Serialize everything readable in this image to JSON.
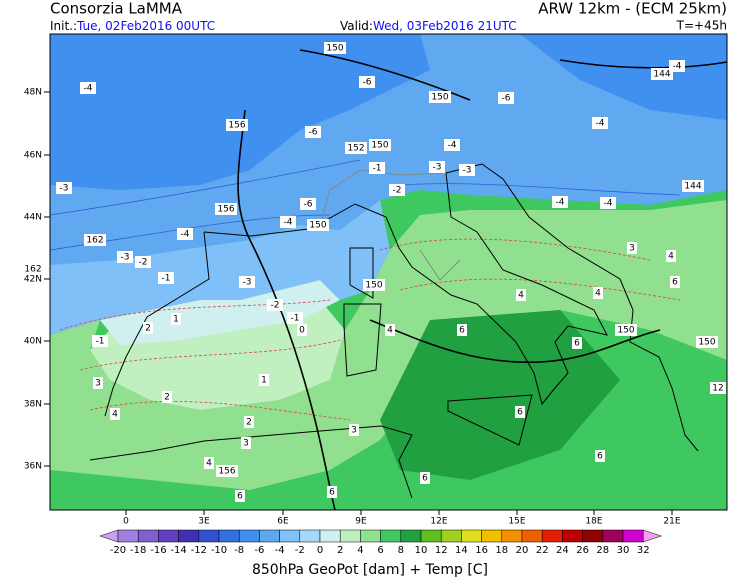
{
  "header": {
    "title": "Consorzia LaMMA",
    "model": "ARW 12km - (ECM 25km)",
    "init_label": "Init.:",
    "init_time": "Tue, 02Feb2016 00UTC",
    "valid_label": "Valid:",
    "valid_time": "Wed, 03Feb2016 21UTC",
    "lead": "T=+45h"
  },
  "map": {
    "lat_labels": [
      "48N",
      "46N",
      "44N",
      "42N",
      "40N",
      "38N",
      "36N"
    ],
    "lon_labels": [
      "0",
      "3E",
      "6E",
      "9E",
      "12E",
      "15E",
      "18E",
      "21E"
    ],
    "contour_labels": [
      -4,
      150,
      -6,
      150,
      -6,
      144,
      -4,
      156,
      -6,
      -4,
      150,
      152,
      -4,
      -1,
      -3,
      -3,
      144,
      -3,
      156,
      -2,
      -4,
      -4,
      -6,
      -4,
      150,
      -4,
      162,
      -3,
      -2,
      -1,
      162,
      -3,
      -2,
      -1,
      150,
      0,
      1,
      2,
      -1,
      3,
      4,
      2,
      1,
      2,
      3,
      3,
      4,
      156,
      6,
      6,
      4,
      6,
      4,
      6,
      150,
      150,
      12,
      3,
      4,
      6,
      4,
      6,
      6,
      6
    ]
  },
  "colorbar": {
    "labels": [
      -20,
      -18,
      -16,
      -14,
      -12,
      -10,
      -8,
      -6,
      -4,
      -2,
      0,
      2,
      4,
      6,
      8,
      10,
      12,
      14,
      16,
      18,
      20,
      22,
      24,
      26,
      28,
      30,
      32
    ],
    "colors": [
      "#c8a0f0",
      "#a080e0",
      "#8060d0",
      "#6040c0",
      "#4030b0",
      "#3050d0",
      "#3070e0",
      "#4090f0",
      "#60a8f0",
      "#80c0f8",
      "#a8d8f8",
      "#d0f0f0",
      "#c0f0c0",
      "#90e090",
      "#40c860",
      "#20a040",
      "#60c020",
      "#a0d020",
      "#e0e020",
      "#f0c000",
      "#f09000",
      "#f06000",
      "#e02000",
      "#c00000",
      "#900000",
      "#a00060",
      "#d000d0",
      "#f0a0f0"
    ]
  },
  "caption": "850hPa GeoPot [dam] + Temp [C]"
}
